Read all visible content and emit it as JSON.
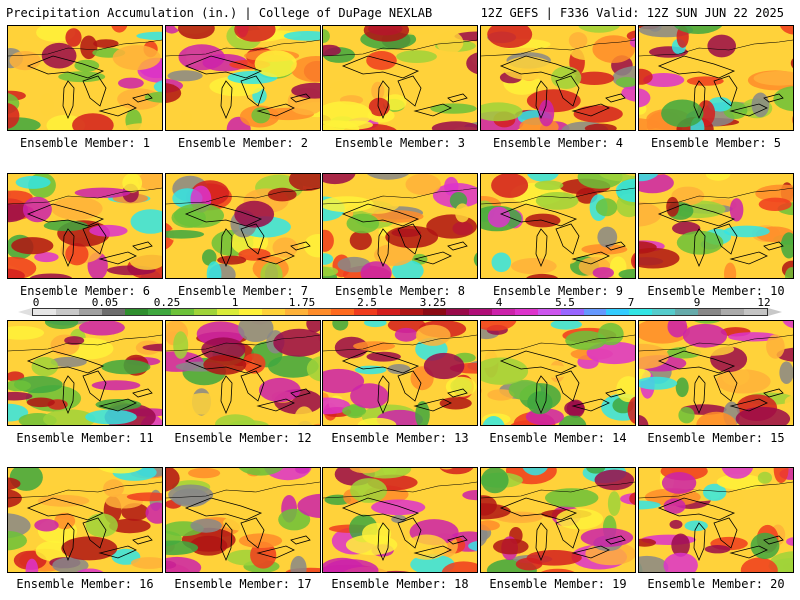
{
  "header": {
    "title": "Precipitation Accumulation (in.) | College of DuPage NEXLAB",
    "info": "12Z GEFS | F336 Valid: 12Z SUN JUN 22 2025"
  },
  "colorbar": {
    "labels": [
      "0",
      "0.05",
      "0.25",
      "1",
      "1.75",
      "2.5",
      "3.25",
      "4",
      "5.5",
      "7",
      "9",
      "12"
    ],
    "colors": [
      "#e6e6e6",
      "#c8c8c8",
      "#a0a0a0",
      "#6e6e6e",
      "#2f8f2f",
      "#3fa83f",
      "#6cc23a",
      "#9fd43a",
      "#d9ec3a",
      "#fff23a",
      "#ffd23a",
      "#ffb23a",
      "#ff8c2a",
      "#ff6a1f",
      "#f03c1e",
      "#d41e1e",
      "#b01414",
      "#8c0a14",
      "#9a0a4a",
      "#b00e78",
      "#cc22aa",
      "#dd33cc",
      "#cc55ee",
      "#9966ff",
      "#6699ff",
      "#33ccff",
      "#33e5e5",
      "#55cccc",
      "#66aaaa",
      "#888888",
      "#aaaaaa",
      "#c4c4c4"
    ]
  },
  "panels": [
    {
      "caption": "Ensemble Member: 1"
    },
    {
      "caption": "Ensemble Member: 2"
    },
    {
      "caption": "Ensemble Member: 3"
    },
    {
      "caption": "Ensemble Member: 4"
    },
    {
      "caption": "Ensemble Member: 5"
    },
    {
      "caption": "Ensemble Member: 6"
    },
    {
      "caption": "Ensemble Member: 7"
    },
    {
      "caption": "Ensemble Member: 8"
    },
    {
      "caption": "Ensemble Member: 9"
    },
    {
      "caption": "Ensemble Member: 10"
    },
    {
      "caption": "Ensemble Member: 11"
    },
    {
      "caption": "Ensemble Member: 12"
    },
    {
      "caption": "Ensemble Member: 13"
    },
    {
      "caption": "Ensemble Member: 14"
    },
    {
      "caption": "Ensemble Member: 15"
    },
    {
      "caption": "Ensemble Member: 16"
    },
    {
      "caption": "Ensemble Member: 17"
    },
    {
      "caption": "Ensemble Member: 18"
    },
    {
      "caption": "Ensemble Member: 19"
    },
    {
      "caption": "Ensemble Member: 20"
    }
  ]
}
